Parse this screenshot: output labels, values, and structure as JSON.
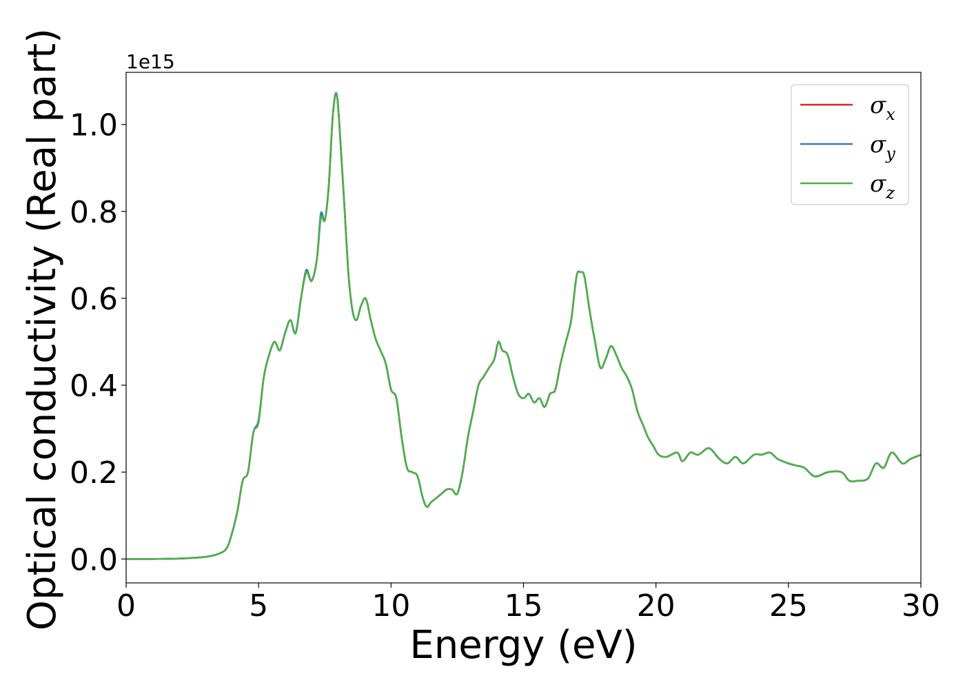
{
  "chart_data": {
    "type": "line",
    "xlabel": "Energy (eV)",
    "ylabel": "Optical conductivity (Real part)",
    "y_offset_text": "1e15",
    "xlim": [
      0,
      30
    ],
    "ylim": [
      -0.055,
      1.12
    ],
    "y_scale_factor": 1000000000000000.0,
    "x_ticks": [
      0,
      5,
      10,
      15,
      20,
      25,
      30
    ],
    "x_tick_labels": [
      "0",
      "5",
      "10",
      "15",
      "20",
      "25",
      "30"
    ],
    "y_ticks": [
      0.0,
      0.2,
      0.4,
      0.6,
      0.8,
      1.0
    ],
    "y_tick_labels": [
      "0.0",
      "0.2",
      "0.4",
      "0.6",
      "0.8",
      "1.0"
    ],
    "grid": false,
    "legend_position": "upper-right",
    "series": [
      {
        "name": "σx",
        "label_base": "σ",
        "label_sub": "x",
        "color": "#d62728",
        "x": [
          0,
          1,
          2,
          3,
          3.5,
          3.8,
          4.0,
          4.2,
          4.4,
          4.6,
          4.8,
          5.0,
          5.2,
          5.4,
          5.6,
          5.8,
          6.0,
          6.2,
          6.4,
          6.6,
          6.8,
          7.0,
          7.2,
          7.35,
          7.5,
          7.65,
          7.8,
          7.95,
          8.1,
          8.25,
          8.4,
          8.55,
          8.7,
          8.85,
          9.0,
          9.1,
          9.2,
          9.4,
          9.6,
          9.8,
          10.0,
          10.2,
          10.4,
          10.6,
          10.8,
          11.0,
          11.2,
          11.35,
          11.5,
          11.7,
          11.9,
          12.1,
          12.3,
          12.5,
          12.7,
          12.9,
          13.1,
          13.3,
          13.5,
          13.7,
          13.9,
          14.05,
          14.2,
          14.4,
          14.6,
          14.8,
          15.0,
          15.2,
          15.4,
          15.6,
          15.8,
          16.0,
          16.2,
          16.4,
          16.6,
          16.8,
          17.0,
          17.15,
          17.3,
          17.5,
          17.7,
          17.9,
          18.1,
          18.3,
          18.5,
          18.7,
          18.9,
          19.1,
          19.3,
          19.5,
          19.7,
          19.9,
          20.1,
          20.4,
          20.8,
          21.0,
          21.3,
          21.6,
          22.0,
          22.4,
          22.7,
          23.0,
          23.3,
          23.7,
          24.0,
          24.3,
          24.6,
          25.0,
          25.3,
          25.6,
          26.0,
          26.5,
          27.0,
          27.3,
          27.6,
          28.0,
          28.3,
          28.6,
          28.9,
          29.3,
          29.6,
          30.0
        ],
        "y": [
          0.0,
          0.0,
          0.001,
          0.005,
          0.012,
          0.025,
          0.06,
          0.11,
          0.18,
          0.2,
          0.29,
          0.32,
          0.42,
          0.47,
          0.5,
          0.48,
          0.52,
          0.55,
          0.52,
          0.6,
          0.66,
          0.64,
          0.69,
          0.79,
          0.78,
          0.86,
          1.02,
          1.07,
          0.95,
          0.8,
          0.65,
          0.57,
          0.55,
          0.58,
          0.6,
          0.59,
          0.56,
          0.51,
          0.48,
          0.45,
          0.39,
          0.37,
          0.28,
          0.21,
          0.2,
          0.19,
          0.14,
          0.12,
          0.13,
          0.14,
          0.15,
          0.16,
          0.16,
          0.15,
          0.2,
          0.28,
          0.34,
          0.4,
          0.42,
          0.44,
          0.46,
          0.5,
          0.48,
          0.47,
          0.42,
          0.38,
          0.37,
          0.38,
          0.36,
          0.37,
          0.35,
          0.38,
          0.39,
          0.45,
          0.5,
          0.55,
          0.65,
          0.66,
          0.65,
          0.57,
          0.5,
          0.44,
          0.46,
          0.49,
          0.47,
          0.44,
          0.42,
          0.39,
          0.34,
          0.31,
          0.28,
          0.26,
          0.24,
          0.235,
          0.245,
          0.225,
          0.245,
          0.24,
          0.255,
          0.23,
          0.22,
          0.235,
          0.22,
          0.24,
          0.24,
          0.245,
          0.23,
          0.22,
          0.215,
          0.21,
          0.19,
          0.2,
          0.2,
          0.18,
          0.18,
          0.185,
          0.22,
          0.21,
          0.245,
          0.22,
          0.23,
          0.24
        ]
      },
      {
        "name": "σy",
        "label_base": "σ",
        "label_sub": "y",
        "color": "#3a7ab6",
        "x": [
          0,
          1,
          2,
          3,
          3.5,
          3.8,
          4.0,
          4.2,
          4.4,
          4.6,
          4.8,
          5.0,
          5.2,
          5.4,
          5.6,
          5.8,
          6.0,
          6.2,
          6.4,
          6.6,
          6.8,
          7.0,
          7.2,
          7.35,
          7.5,
          7.65,
          7.8,
          7.95,
          8.1,
          8.25,
          8.4,
          8.55,
          8.7,
          8.85,
          9.0,
          9.1,
          9.2,
          9.4,
          9.6,
          9.8,
          10.0,
          10.2,
          10.4,
          10.6,
          10.8,
          11.0,
          11.2,
          11.35,
          11.5,
          11.7,
          11.9,
          12.1,
          12.3,
          12.5,
          12.7,
          12.9,
          13.1,
          13.3,
          13.5,
          13.7,
          13.9,
          14.05,
          14.2,
          14.4,
          14.6,
          14.8,
          15.0,
          15.2,
          15.4,
          15.6,
          15.8,
          16.0,
          16.2,
          16.4,
          16.6,
          16.8,
          17.0,
          17.15,
          17.3,
          17.5,
          17.7,
          17.9,
          18.1,
          18.3,
          18.5,
          18.7,
          18.9,
          19.1,
          19.3,
          19.5,
          19.7,
          19.9,
          20.1,
          20.4,
          20.8,
          21.0,
          21.3,
          21.6,
          22.0,
          22.4,
          22.7,
          23.0,
          23.3,
          23.7,
          24.0,
          24.3,
          24.6,
          25.0,
          25.3,
          25.6,
          26.0,
          26.5,
          27.0,
          27.3,
          27.6,
          28.0,
          28.3,
          28.6,
          28.9,
          29.3,
          29.6,
          30.0
        ],
        "y": [
          0.0,
          0.0,
          0.001,
          0.005,
          0.012,
          0.025,
          0.06,
          0.11,
          0.18,
          0.2,
          0.29,
          0.32,
          0.42,
          0.47,
          0.5,
          0.48,
          0.52,
          0.55,
          0.52,
          0.6,
          0.665,
          0.64,
          0.69,
          0.795,
          0.78,
          0.86,
          1.02,
          1.07,
          0.95,
          0.8,
          0.65,
          0.57,
          0.55,
          0.58,
          0.6,
          0.59,
          0.56,
          0.51,
          0.48,
          0.45,
          0.39,
          0.37,
          0.28,
          0.21,
          0.2,
          0.19,
          0.14,
          0.12,
          0.13,
          0.14,
          0.15,
          0.16,
          0.16,
          0.15,
          0.2,
          0.28,
          0.34,
          0.4,
          0.42,
          0.44,
          0.46,
          0.5,
          0.48,
          0.47,
          0.42,
          0.38,
          0.37,
          0.38,
          0.36,
          0.37,
          0.35,
          0.38,
          0.39,
          0.45,
          0.5,
          0.55,
          0.65,
          0.66,
          0.65,
          0.57,
          0.5,
          0.44,
          0.46,
          0.49,
          0.47,
          0.44,
          0.42,
          0.39,
          0.34,
          0.31,
          0.28,
          0.26,
          0.24,
          0.235,
          0.245,
          0.225,
          0.245,
          0.24,
          0.255,
          0.23,
          0.22,
          0.235,
          0.22,
          0.24,
          0.24,
          0.245,
          0.23,
          0.22,
          0.215,
          0.21,
          0.19,
          0.2,
          0.2,
          0.18,
          0.18,
          0.185,
          0.22,
          0.21,
          0.245,
          0.22,
          0.23,
          0.24
        ]
      },
      {
        "name": "σz",
        "label_base": "σ",
        "label_sub": "z",
        "color": "#4daf4a",
        "x": [
          0,
          1,
          2,
          3,
          3.5,
          3.8,
          4.0,
          4.2,
          4.4,
          4.6,
          4.8,
          5.0,
          5.2,
          5.4,
          5.6,
          5.8,
          6.0,
          6.2,
          6.4,
          6.6,
          6.8,
          7.0,
          7.2,
          7.35,
          7.5,
          7.65,
          7.8,
          7.95,
          8.1,
          8.25,
          8.4,
          8.55,
          8.7,
          8.85,
          9.0,
          9.1,
          9.2,
          9.4,
          9.6,
          9.8,
          10.0,
          10.2,
          10.4,
          10.6,
          10.8,
          11.0,
          11.2,
          11.35,
          11.5,
          11.7,
          11.9,
          12.1,
          12.3,
          12.5,
          12.7,
          12.9,
          13.1,
          13.3,
          13.5,
          13.7,
          13.9,
          14.05,
          14.2,
          14.4,
          14.6,
          14.8,
          15.0,
          15.2,
          15.4,
          15.6,
          15.8,
          16.0,
          16.2,
          16.4,
          16.6,
          16.8,
          17.0,
          17.15,
          17.3,
          17.5,
          17.7,
          17.9,
          18.1,
          18.3,
          18.5,
          18.7,
          18.9,
          19.1,
          19.3,
          19.5,
          19.7,
          19.9,
          20.1,
          20.4,
          20.8,
          21.0,
          21.3,
          21.6,
          22.0,
          22.4,
          22.7,
          23.0,
          23.3,
          23.7,
          24.0,
          24.3,
          24.6,
          25.0,
          25.3,
          25.6,
          26.0,
          26.5,
          27.0,
          27.3,
          27.6,
          28.0,
          28.3,
          28.6,
          28.9,
          29.3,
          29.6,
          30.0
        ],
        "y": [
          0.0,
          0.0,
          0.001,
          0.005,
          0.012,
          0.025,
          0.06,
          0.11,
          0.18,
          0.2,
          0.29,
          0.315,
          0.42,
          0.47,
          0.5,
          0.48,
          0.52,
          0.55,
          0.52,
          0.6,
          0.66,
          0.64,
          0.69,
          0.785,
          0.78,
          0.86,
          1.02,
          1.07,
          0.95,
          0.8,
          0.65,
          0.57,
          0.55,
          0.58,
          0.6,
          0.59,
          0.56,
          0.51,
          0.48,
          0.45,
          0.39,
          0.37,
          0.28,
          0.21,
          0.2,
          0.19,
          0.14,
          0.12,
          0.13,
          0.14,
          0.15,
          0.16,
          0.16,
          0.15,
          0.2,
          0.28,
          0.34,
          0.4,
          0.42,
          0.44,
          0.46,
          0.5,
          0.48,
          0.47,
          0.42,
          0.38,
          0.37,
          0.38,
          0.36,
          0.37,
          0.35,
          0.38,
          0.39,
          0.45,
          0.5,
          0.55,
          0.65,
          0.66,
          0.65,
          0.57,
          0.5,
          0.44,
          0.46,
          0.49,
          0.47,
          0.44,
          0.42,
          0.39,
          0.34,
          0.31,
          0.28,
          0.26,
          0.24,
          0.235,
          0.245,
          0.225,
          0.245,
          0.24,
          0.255,
          0.23,
          0.22,
          0.235,
          0.22,
          0.24,
          0.24,
          0.245,
          0.23,
          0.22,
          0.215,
          0.21,
          0.19,
          0.2,
          0.2,
          0.18,
          0.18,
          0.185,
          0.22,
          0.21,
          0.245,
          0.22,
          0.23,
          0.24
        ]
      }
    ]
  }
}
